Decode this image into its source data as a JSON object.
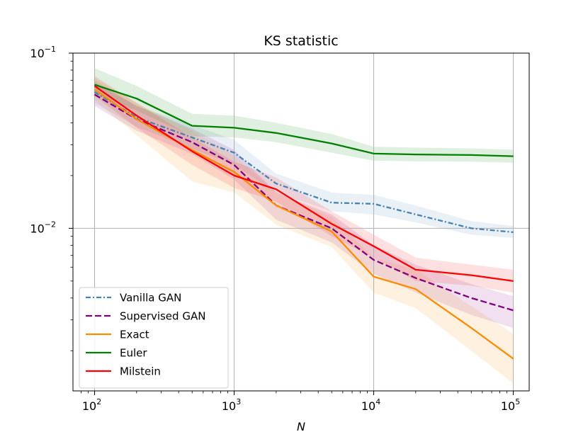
{
  "chart_data": {
    "type": "line",
    "title": "KS statistic",
    "xlabel": "N",
    "ylabel": "",
    "xscale": "log",
    "yscale": "log",
    "xlim": [
      70,
      130000
    ],
    "ylim": [
      0.00118,
      0.1
    ],
    "grid": true,
    "legend_location": "lower-left",
    "x_ticks": [
      {
        "value": 100,
        "base": "10",
        "exp": "2"
      },
      {
        "value": 1000,
        "base": "10",
        "exp": "3"
      },
      {
        "value": 10000,
        "base": "10",
        "exp": "4"
      },
      {
        "value": 100000,
        "base": "10",
        "exp": "5"
      }
    ],
    "y_ticks": [
      {
        "value": 0.1,
        "base": "10",
        "exp": "−1"
      },
      {
        "value": 0.01,
        "base": "10",
        "exp": "−2"
      }
    ],
    "x": [
      100,
      200,
      500,
      1000,
      2000,
      5000,
      10000,
      20000,
      50000,
      100000
    ],
    "series": [
      {
        "name": "Vanilla GAN",
        "color": "#4682b4",
        "dash": "dashdot",
        "values": [
          0.06,
          0.043,
          0.033,
          0.027,
          0.018,
          0.014,
          0.0138,
          0.012,
          0.01,
          0.0095
        ],
        "band_low": [
          0.052,
          0.038,
          0.0285,
          0.023,
          0.016,
          0.0125,
          0.012,
          0.0108,
          0.0092,
          0.0088
        ],
        "band_high": [
          0.07,
          0.05,
          0.039,
          0.032,
          0.0205,
          0.016,
          0.0155,
          0.0135,
          0.011,
          0.0103
        ]
      },
      {
        "name": "Supervised GAN",
        "color": "#800080",
        "dash": "dashed",
        "values": [
          0.058,
          0.042,
          0.031,
          0.023,
          0.0135,
          0.01,
          0.0066,
          0.0052,
          0.004,
          0.0034
        ],
        "band_low": [
          0.05,
          0.036,
          0.0265,
          0.019,
          0.0112,
          0.0083,
          0.0055,
          0.0043,
          0.0032,
          0.0027
        ],
        "band_high": [
          0.068,
          0.05,
          0.037,
          0.028,
          0.016,
          0.012,
          0.008,
          0.0062,
          0.0048,
          0.0041
        ]
      },
      {
        "name": "Exact",
        "color": "#ff8c00",
        "dash": "solid",
        "values": [
          0.062,
          0.042,
          0.028,
          0.021,
          0.0135,
          0.0096,
          0.0053,
          0.0045,
          0.0027,
          0.0018
        ],
        "band_low": [
          0.054,
          0.034,
          0.0185,
          0.016,
          0.0105,
          0.0078,
          0.0043,
          0.0035,
          0.002,
          0.0013
        ],
        "band_high": [
          0.072,
          0.052,
          0.036,
          0.026,
          0.016,
          0.0116,
          0.0068,
          0.0058,
          0.0036,
          0.0025
        ]
      },
      {
        "name": "Euler",
        "color": "#008000",
        "dash": "solid",
        "values": [
          0.066,
          0.055,
          0.0385,
          0.0375,
          0.035,
          0.0305,
          0.0267,
          0.0264,
          0.0262,
          0.0258
        ],
        "band_low": [
          0.058,
          0.047,
          0.0335,
          0.033,
          0.031,
          0.027,
          0.0243,
          0.0241,
          0.024,
          0.0237
        ],
        "band_high": [
          0.082,
          0.065,
          0.045,
          0.044,
          0.04,
          0.0345,
          0.0292,
          0.0289,
          0.0286,
          0.0281
        ]
      },
      {
        "name": "Milstein",
        "color": "#ff0000",
        "dash": "solid",
        "values": [
          0.065,
          0.044,
          0.0275,
          0.02,
          0.0167,
          0.0106,
          0.0079,
          0.0058,
          0.0054,
          0.005
        ],
        "band_low": [
          0.057,
          0.0375,
          0.023,
          0.017,
          0.0142,
          0.009,
          0.0068,
          0.005,
          0.0047,
          0.0043
        ],
        "band_high": [
          0.074,
          0.052,
          0.033,
          0.024,
          0.0195,
          0.0125,
          0.0092,
          0.0068,
          0.0062,
          0.0058
        ]
      }
    ]
  }
}
